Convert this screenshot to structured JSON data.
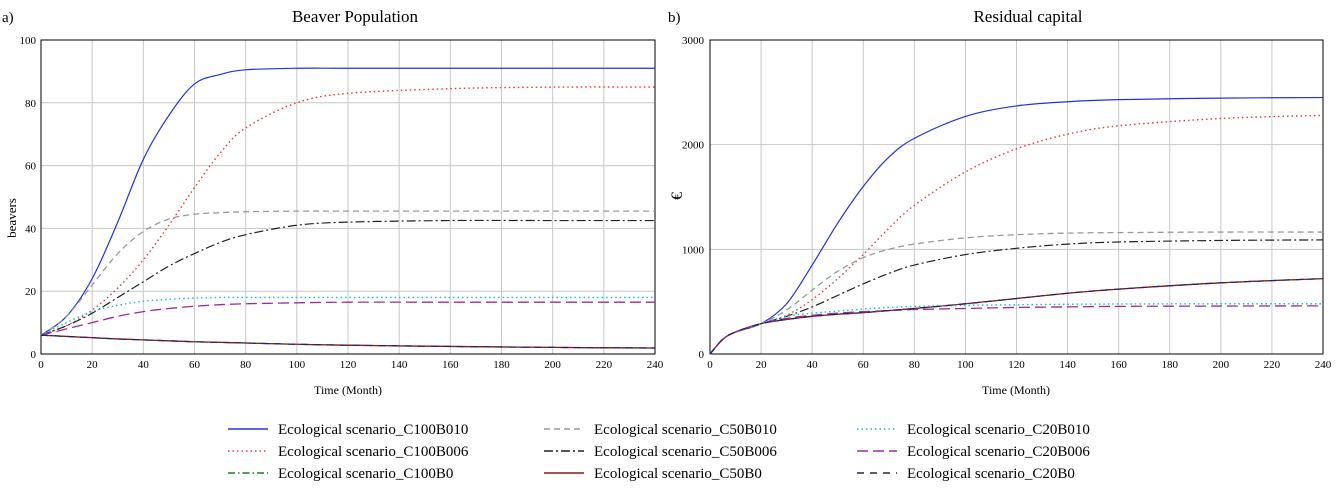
{
  "series_styles": [
    {
      "color": "#2233dd",
      "dash": "",
      "width": 1.2
    },
    {
      "color": "#ee3333",
      "dash": "1.5,3",
      "width": 1.4
    },
    {
      "color": "#1f7f1f",
      "dash": "7,3,1.5,3",
      "width": 1.2
    },
    {
      "color": "#999999",
      "dash": "6,4",
      "width": 1.3
    },
    {
      "color": "#222222",
      "dash": "9,3,2,3",
      "width": 1.2
    },
    {
      "color": "#8b1a1a",
      "dash": "",
      "width": 1.3
    },
    {
      "color": "#11bbdd",
      "dash": "1.5,3",
      "width": 1.4
    },
    {
      "color": "#9b2d9b",
      "dash": "11,5",
      "width": 1.3
    },
    {
      "color": "#22226b",
      "dash": "7,6",
      "width": 1.2
    }
  ],
  "legend": {
    "columns": [
      [
        "Ecological scenario_C100B010",
        "Ecological scenario_C100B006",
        "Ecological scenario_C100B0"
      ],
      [
        "Ecological scenario_C50B010",
        "Ecological scenario_C50B006",
        "Ecological scenario_C50B0"
      ],
      [
        "Ecological scenario_C20B010",
        "Ecological scenario_C20B006",
        "Ecological scenario_C20B0"
      ]
    ]
  },
  "chart_data": [
    {
      "type": "line",
      "panel": "a)",
      "title": "Beaver Population",
      "xlabel": "Time (Month)",
      "ylabel": "beavers",
      "xlim": [
        0,
        240
      ],
      "ylim": [
        0,
        100
      ],
      "xticks": [
        0,
        20,
        40,
        60,
        80,
        100,
        120,
        140,
        160,
        180,
        200,
        220,
        240
      ],
      "yticks": [
        0,
        20,
        40,
        60,
        80,
        100
      ],
      "grid": true,
      "x": [
        0,
        10,
        20,
        30,
        40,
        50,
        60,
        70,
        80,
        100,
        120,
        160,
        200,
        240
      ],
      "series": [
        {
          "name": "Ecological scenario_C100B010",
          "values": [
            6,
            12,
            24,
            42,
            62,
            76,
            86,
            89,
            90.5,
            91,
            91,
            91,
            91,
            91
          ]
        },
        {
          "name": "Ecological scenario_C100B006",
          "values": [
            6,
            9,
            14,
            21,
            30,
            41,
            53,
            64,
            72,
            80,
            83,
            84.5,
            85,
            85
          ]
        },
        {
          "name": "Ecological scenario_C100B0",
          "values": [
            6,
            5.6,
            5.2,
            4.8,
            4.5,
            4.2,
            3.9,
            3.7,
            3.5,
            3.1,
            2.8,
            2.4,
            2.1,
            1.9
          ]
        },
        {
          "name": "Ecological scenario_C50B010",
          "values": [
            6,
            12,
            22,
            32,
            39,
            43,
            44.5,
            45,
            45.3,
            45.5,
            45.5,
            45.5,
            45.5,
            45.5
          ]
        },
        {
          "name": "Ecological scenario_C50B006",
          "values": [
            6,
            9,
            13,
            18,
            23,
            28,
            32,
            35.5,
            38,
            41,
            42,
            42.5,
            42.5,
            42.5
          ]
        },
        {
          "name": "Ecological scenario_C50B0",
          "values": [
            6,
            5.6,
            5.2,
            4.8,
            4.5,
            4.2,
            3.9,
            3.7,
            3.5,
            3.1,
            2.8,
            2.4,
            2.1,
            1.9
          ]
        },
        {
          "name": "Ecological scenario_C20B010",
          "values": [
            6,
            10,
            13.5,
            15.5,
            16.8,
            17.4,
            17.8,
            18,
            18,
            18,
            18,
            18,
            18,
            18
          ]
        },
        {
          "name": "Ecological scenario_C20B006",
          "values": [
            6,
            8,
            10,
            12,
            13.5,
            14.5,
            15.2,
            15.7,
            16,
            16.3,
            16.5,
            16.5,
            16.5,
            16.5
          ]
        },
        {
          "name": "Ecological scenario_C20B0",
          "values": [
            6,
            5.6,
            5.2,
            4.8,
            4.5,
            4.2,
            3.9,
            3.7,
            3.5,
            3.1,
            2.8,
            2.4,
            2.1,
            1.9
          ]
        }
      ]
    },
    {
      "type": "line",
      "panel": "b)",
      "title": "Residual capital",
      "xlabel": "Time (Month)",
      "ylabel": "€",
      "xlim": [
        0,
        240
      ],
      "ylim": [
        0,
        3000
      ],
      "xticks": [
        0,
        20,
        40,
        60,
        80,
        100,
        120,
        140,
        160,
        180,
        200,
        220,
        240
      ],
      "yticks": [
        0,
        1000,
        2000,
        3000
      ],
      "grid": true,
      "x": [
        0,
        5,
        10,
        20,
        30,
        40,
        50,
        60,
        70,
        80,
        100,
        120,
        140,
        160,
        200,
        240
      ],
      "series": [
        {
          "name": "Ecological scenario_C100B010",
          "values": [
            0,
            140,
            210,
            290,
            480,
            850,
            1250,
            1600,
            1880,
            2060,
            2270,
            2370,
            2410,
            2430,
            2445,
            2450
          ]
        },
        {
          "name": "Ecological scenario_C100B006",
          "values": [
            0,
            140,
            210,
            290,
            370,
            520,
            720,
            950,
            1200,
            1420,
            1740,
            1960,
            2100,
            2180,
            2250,
            2280
          ]
        },
        {
          "name": "Ecological scenario_C100B0",
          "values": [
            0,
            140,
            210,
            290,
            330,
            360,
            380,
            395,
            415,
            435,
            480,
            530,
            580,
            620,
            680,
            720
          ]
        },
        {
          "name": "Ecological scenario_C50B010",
          "values": [
            0,
            140,
            210,
            290,
            420,
            610,
            790,
            920,
            1000,
            1050,
            1110,
            1140,
            1155,
            1160,
            1165,
            1165
          ]
        },
        {
          "name": "Ecological scenario_C50B006",
          "values": [
            0,
            140,
            210,
            290,
            360,
            450,
            560,
            670,
            770,
            850,
            950,
            1010,
            1050,
            1070,
            1085,
            1090
          ]
        },
        {
          "name": "Ecological scenario_C50B0",
          "values": [
            0,
            140,
            210,
            290,
            330,
            360,
            380,
            395,
            415,
            435,
            480,
            530,
            580,
            620,
            680,
            720
          ]
        },
        {
          "name": "Ecological scenario_C20B010",
          "values": [
            0,
            140,
            210,
            290,
            360,
            390,
            410,
            430,
            445,
            455,
            465,
            470,
            475,
            478,
            480,
            480
          ]
        },
        {
          "name": "Ecological scenario_C20B006",
          "values": [
            0,
            140,
            210,
            290,
            340,
            370,
            390,
            405,
            415,
            425,
            435,
            445,
            450,
            455,
            458,
            460
          ]
        },
        {
          "name": "Ecological scenario_C20B0",
          "values": [
            0,
            140,
            210,
            290,
            330,
            360,
            380,
            395,
            415,
            435,
            480,
            530,
            580,
            620,
            680,
            720
          ]
        }
      ]
    }
  ]
}
